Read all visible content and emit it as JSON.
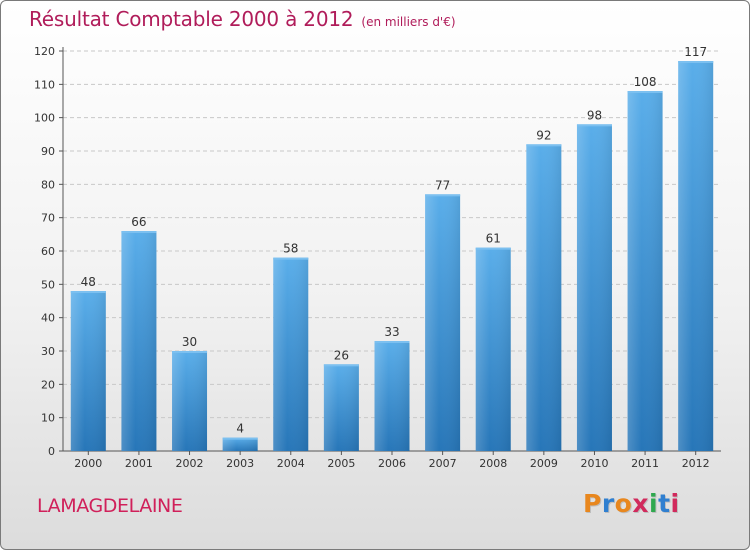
{
  "chart_data": {
    "type": "bar",
    "title": "Résultat Comptable 2000 à 2012",
    "subtitle": "(en milliers d'€)",
    "xlabel": "",
    "ylabel": "",
    "ylim": [
      0,
      120
    ],
    "yticks": [
      0,
      10,
      20,
      30,
      40,
      50,
      60,
      70,
      80,
      90,
      100,
      110,
      120
    ],
    "grid": true,
    "categories": [
      "2000",
      "2001",
      "2002",
      "2003",
      "2004",
      "2005",
      "2006",
      "2007",
      "2008",
      "2009",
      "2010",
      "2011",
      "2012"
    ],
    "values": [
      48,
      66,
      30,
      4,
      58,
      26,
      33,
      77,
      61,
      92,
      98,
      108,
      117
    ],
    "bar_color": "#3d94d6",
    "grid_color": "#c8c8c8"
  },
  "footer": {
    "commune": "LAMAGDELAINE",
    "brand_letters": [
      "P",
      "r",
      "o",
      "x",
      "i",
      "t",
      "i"
    ],
    "brand_colors": [
      "#e8871e",
      "#2f7fd0",
      "#e8871e",
      "#d12a5c",
      "#2fa84f",
      "#2f7fd0",
      "#d12a5c"
    ]
  },
  "colors": {
    "title": "#b01c5a",
    "commune": "#d0205a"
  }
}
